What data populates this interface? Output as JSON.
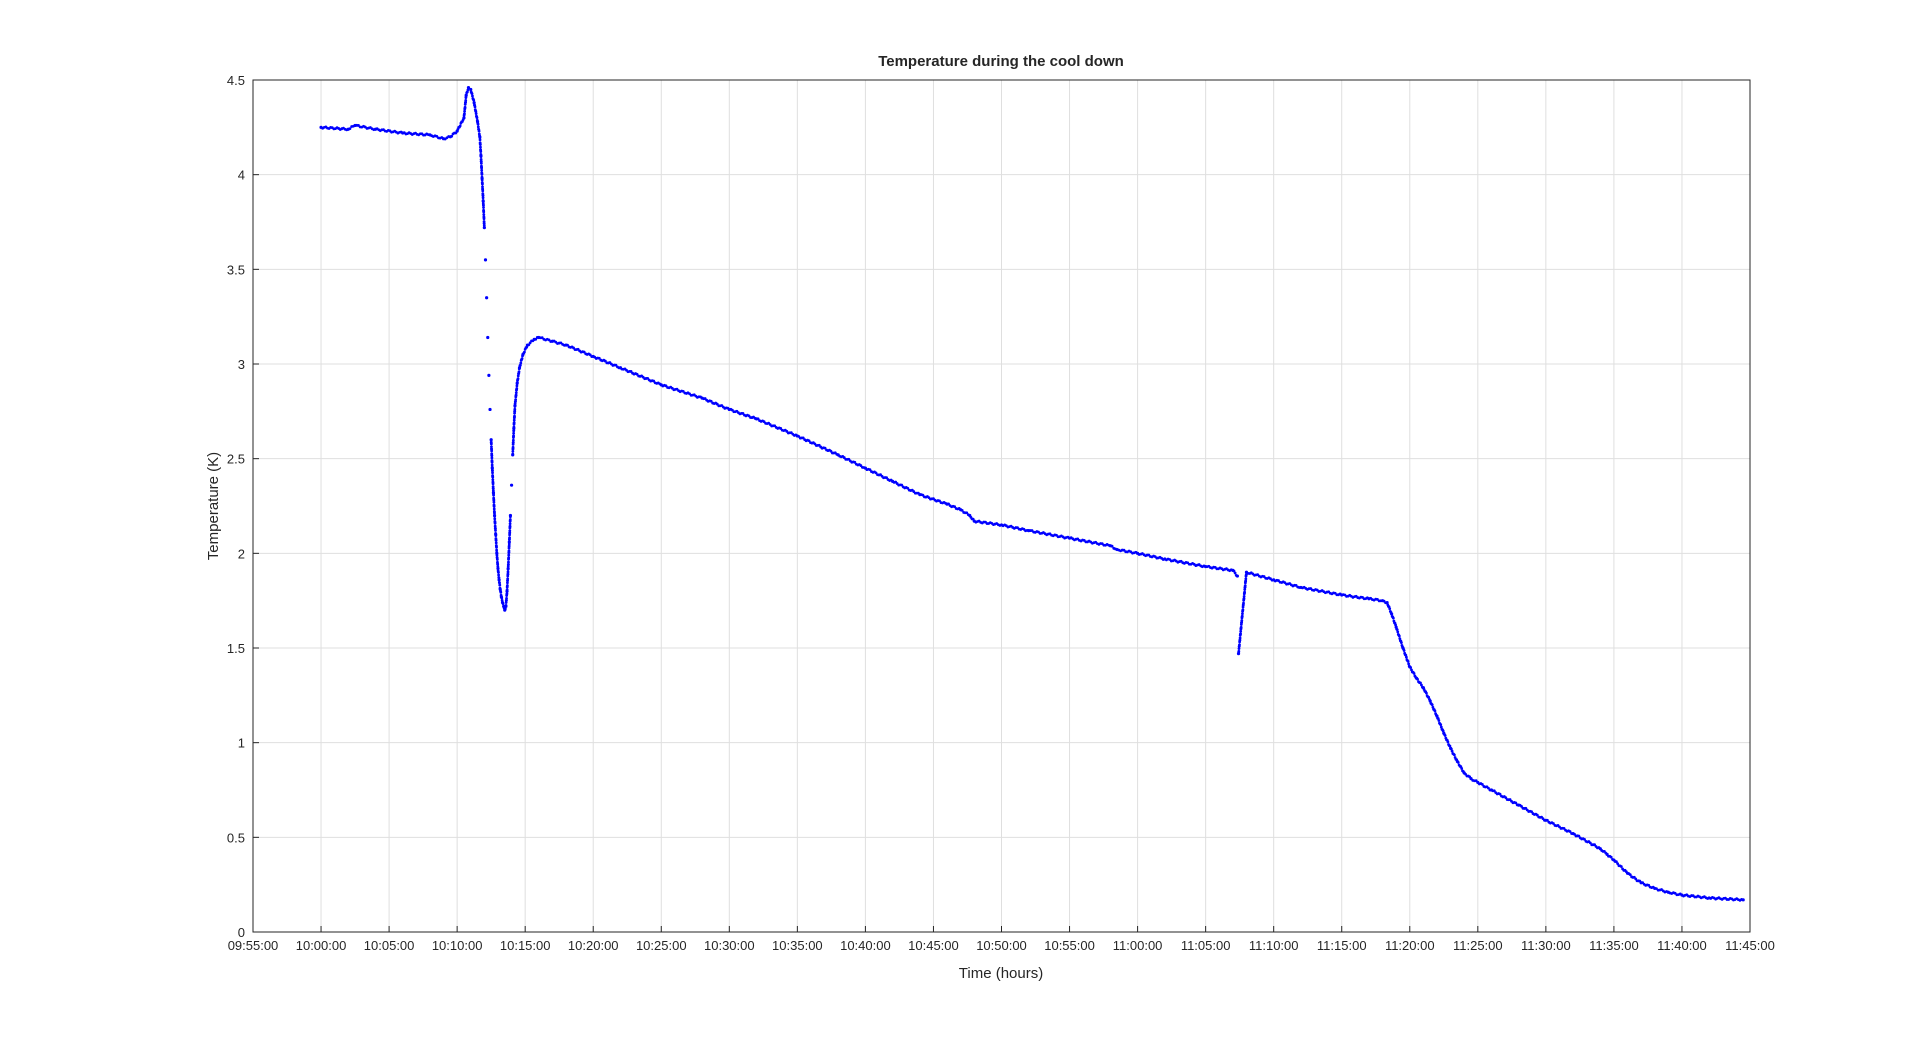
{
  "chart_data": {
    "type": "scatter",
    "title": "Temperature during the cool down",
    "xlabel": "Time (hours)",
    "ylabel": "Temperature (K)",
    "x_range": [
      "09:55:00",
      "11:45:00"
    ],
    "xlim_minutes_from_start": [
      0,
      110
    ],
    "ylim": [
      0,
      4.5
    ],
    "grid": true,
    "legend": "none",
    "marker_color": "#0000ff",
    "x_ticks": [
      "09:55:00",
      "10:00:00",
      "10:05:00",
      "10:10:00",
      "10:15:00",
      "10:20:00",
      "10:25:00",
      "10:30:00",
      "10:35:00",
      "10:40:00",
      "10:45:00",
      "10:50:00",
      "10:55:00",
      "11:00:00",
      "11:05:00",
      "11:10:00",
      "11:15:00",
      "11:20:00",
      "11:25:00",
      "11:30:00",
      "11:35:00",
      "11:40:00",
      "11:45:00"
    ],
    "y_ticks": [
      "0",
      "0.5",
      "1",
      "1.5",
      "2",
      "2.5",
      "3",
      "3.5",
      "4",
      "4.5"
    ],
    "series": [
      {
        "points": [
          [
            "10:00:00",
            4.25
          ],
          [
            "10:02:00",
            4.24
          ],
          [
            "10:02:30",
            4.26
          ],
          [
            "10:04:00",
            4.24
          ],
          [
            "10:06:00",
            4.22
          ],
          [
            "10:08:00",
            4.21
          ],
          [
            "10:09:00",
            4.19
          ],
          [
            "10:09:30",
            4.2
          ],
          [
            "10:10:00",
            4.23
          ],
          [
            "10:10:30",
            4.3
          ],
          [
            "10:10:40",
            4.42
          ],
          [
            "10:10:50",
            4.46
          ],
          [
            "10:11:00",
            4.45
          ],
          [
            "10:11:15",
            4.38
          ],
          [
            "10:11:30",
            4.28
          ],
          [
            "10:11:40",
            4.2
          ],
          [
            "10:11:45",
            4.1
          ],
          [
            "10:11:50",
            3.98
          ],
          [
            "10:11:55",
            3.86
          ],
          [
            "10:12:00",
            3.72
          ],
          [
            "10:12:05",
            3.55
          ],
          [
            "10:12:10",
            3.35
          ],
          [
            "10:12:15",
            3.14
          ],
          [
            "10:12:20",
            2.94
          ],
          [
            "10:12:25",
            2.76
          ],
          [
            "10:12:30",
            2.6
          ],
          [
            "10:12:35",
            2.45
          ],
          [
            "10:12:40",
            2.32
          ],
          [
            "10:12:45",
            2.2
          ],
          [
            "10:12:50",
            2.1
          ],
          [
            "10:12:55",
            2.0
          ],
          [
            "10:13:00",
            1.92
          ],
          [
            "10:13:05",
            1.86
          ],
          [
            "10:13:10",
            1.81
          ],
          [
            "10:13:15",
            1.77
          ],
          [
            "10:13:20",
            1.74
          ],
          [
            "10:13:25",
            1.72
          ],
          [
            "10:13:30",
            1.7
          ],
          [
            "10:13:35",
            1.72
          ],
          [
            "10:13:40",
            1.8
          ],
          [
            "10:13:45",
            1.92
          ],
          [
            "10:13:50",
            2.06
          ],
          [
            "10:13:55",
            2.2
          ],
          [
            "10:14:00",
            2.36
          ],
          [
            "10:14:05",
            2.52
          ],
          [
            "10:14:10",
            2.66
          ],
          [
            "10:14:15",
            2.78
          ],
          [
            "10:14:25",
            2.9
          ],
          [
            "10:14:35",
            2.98
          ],
          [
            "10:14:50",
            3.05
          ],
          [
            "10:15:10",
            3.1
          ],
          [
            "10:15:40",
            3.13
          ],
          [
            "10:16:00",
            3.14
          ],
          [
            "10:17:00",
            3.12
          ],
          [
            "10:18:00",
            3.1
          ],
          [
            "10:20:00",
            3.04
          ],
          [
            "10:22:00",
            2.98
          ],
          [
            "10:25:00",
            2.89
          ],
          [
            "10:28:00",
            2.82
          ],
          [
            "10:30:00",
            2.76
          ],
          [
            "10:32:00",
            2.71
          ],
          [
            "10:35:00",
            2.62
          ],
          [
            "10:38:00",
            2.52
          ],
          [
            "10:40:00",
            2.45
          ],
          [
            "10:42:00",
            2.38
          ],
          [
            "10:44:00",
            2.31
          ],
          [
            "10:46:00",
            2.26
          ],
          [
            "10:47:00",
            2.23
          ],
          [
            "10:47:40",
            2.2
          ],
          [
            "10:48:00",
            2.17
          ],
          [
            "10:50:00",
            2.15
          ],
          [
            "10:52:00",
            2.12
          ],
          [
            "10:55:00",
            2.08
          ],
          [
            "10:58:00",
            2.04
          ],
          [
            "10:58:30",
            2.02
          ],
          [
            "11:00:00",
            2.0
          ],
          [
            "11:02:00",
            1.97
          ],
          [
            "11:05:00",
            1.93
          ],
          [
            "11:07:00",
            1.91
          ],
          [
            "11:07:20",
            1.88
          ],
          [
            "11:07:25",
            1.47
          ],
          [
            "11:08:00",
            1.9
          ],
          [
            "11:10:00",
            1.86
          ],
          [
            "11:12:00",
            1.82
          ],
          [
            "11:15:00",
            1.78
          ],
          [
            "11:17:00",
            1.76
          ],
          [
            "11:18:00",
            1.75
          ],
          [
            "11:18:20",
            1.74
          ],
          [
            "11:18:40",
            1.68
          ],
          [
            "11:19:00",
            1.61
          ],
          [
            "11:19:30",
            1.5
          ],
          [
            "11:20:00",
            1.4
          ],
          [
            "11:20:30",
            1.34
          ],
          [
            "11:21:00",
            1.29
          ],
          [
            "11:21:30",
            1.22
          ],
          [
            "11:22:00",
            1.14
          ],
          [
            "11:22:30",
            1.05
          ],
          [
            "11:23:00",
            0.97
          ],
          [
            "11:23:30",
            0.9
          ],
          [
            "11:24:00",
            0.84
          ],
          [
            "11:24:30",
            0.81
          ],
          [
            "11:25:00",
            0.79
          ],
          [
            "11:26:00",
            0.75
          ],
          [
            "11:28:00",
            0.67
          ],
          [
            "11:30:00",
            0.59
          ],
          [
            "11:32:00",
            0.52
          ],
          [
            "11:34:00",
            0.44
          ],
          [
            "11:34:30",
            0.41
          ],
          [
            "11:35:00",
            0.38
          ],
          [
            "11:36:00",
            0.31
          ],
          [
            "11:37:00",
            0.26
          ],
          [
            "11:38:00",
            0.23
          ],
          [
            "11:39:00",
            0.21
          ],
          [
            "11:40:00",
            0.195
          ],
          [
            "11:42:00",
            0.18
          ],
          [
            "11:44:30",
            0.17
          ]
        ]
      }
    ]
  }
}
